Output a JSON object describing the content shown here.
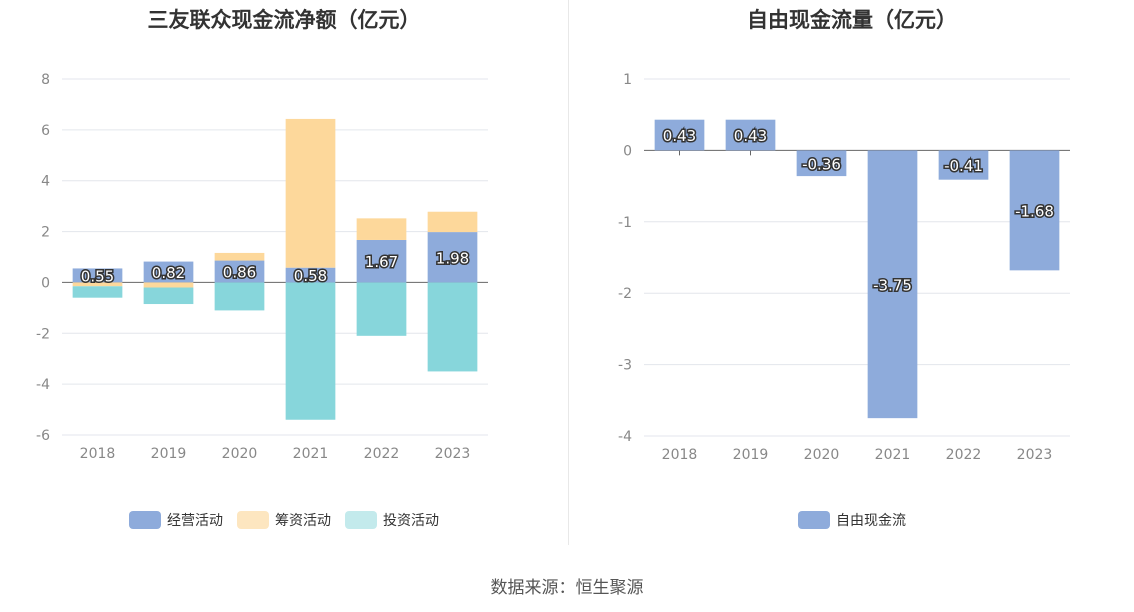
{
  "source_label": "数据来源：恒生聚源",
  "chart_data": [
    {
      "type": "bar",
      "stacked": true,
      "title": "三友联众现金流净额（亿元）",
      "categories": [
        "2018",
        "2019",
        "2020",
        "2021",
        "2022",
        "2023"
      ],
      "ylim": [
        -6,
        8
      ],
      "yticks": [
        8,
        6,
        4,
        2,
        0,
        -2,
        -4,
        -6
      ],
      "grid": true,
      "legend_position": "bottom",
      "series": [
        {
          "name": "经营活动",
          "color": "#8eabdb",
          "values": [
            0.55,
            0.82,
            0.86,
            0.58,
            1.67,
            1.98
          ],
          "labeled": true
        },
        {
          "name": "筹资活动",
          "color": "#fdd89b",
          "values": [
            -0.15,
            -0.2,
            0.3,
            5.85,
            0.85,
            0.8
          ],
          "labeled": false
        },
        {
          "name": "投资活动",
          "color": "#87d6db",
          "values": [
            -0.45,
            -0.65,
            -1.1,
            -5.4,
            -2.1,
            -3.5
          ],
          "labeled": false
        }
      ],
      "data_labels": [
        "0.55",
        "0.82",
        "0.86",
        "0.58",
        "1.67",
        "1.98"
      ]
    },
    {
      "type": "bar",
      "title": "自由现金流量（亿元）",
      "categories": [
        "2018",
        "2019",
        "2020",
        "2021",
        "2022",
        "2023"
      ],
      "ylim": [
        -4,
        1
      ],
      "yticks": [
        1,
        0,
        -1,
        -2,
        -3,
        -4
      ],
      "grid": true,
      "legend_position": "bottom",
      "series": [
        {
          "name": "自由现金流",
          "color": "#8eabdb",
          "values": [
            0.43,
            0.43,
            -0.36,
            -3.75,
            -0.41,
            -1.68
          ]
        }
      ],
      "data_labels": [
        "0.43",
        "0.43",
        "-0.36",
        "-3.75",
        "-0.41",
        "-1.68"
      ]
    }
  ]
}
